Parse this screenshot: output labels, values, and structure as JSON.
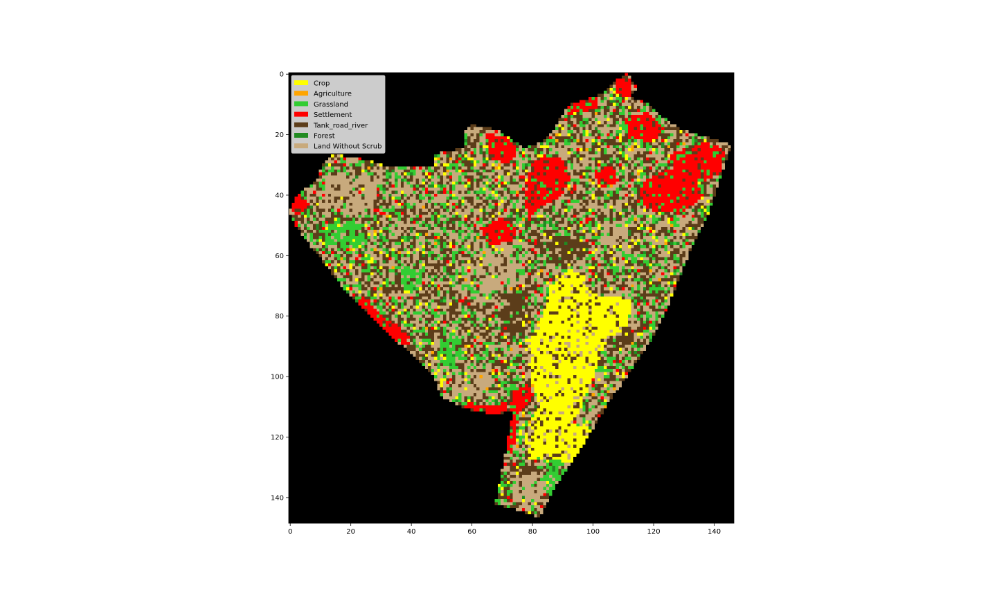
{
  "chart_data": {
    "type": "heatmap",
    "title": "",
    "xlabel": "",
    "ylabel": "",
    "grid_shape": [
      149,
      147
    ],
    "xlim": [
      0,
      147
    ],
    "ylim": [
      149,
      0
    ],
    "x_ticks": [
      0,
      20,
      40,
      60,
      80,
      100,
      120,
      140
    ],
    "y_ticks": [
      0,
      20,
      40,
      60,
      80,
      100,
      120,
      140
    ],
    "background_color": "#000000",
    "legend_position": "upper-left",
    "legend": [
      {
        "name": "Crop",
        "color": "#ffff00"
      },
      {
        "name": "Agriculture",
        "color": "#ffa500"
      },
      {
        "name": "Grassland",
        "color": "#32cd32"
      },
      {
        "name": "Settlement",
        "color": "#ff0000"
      },
      {
        "name": "Tank_road_river",
        "color": "#5c3d1a"
      },
      {
        "name": "Forest",
        "color": "#228b22"
      },
      {
        "name": "Land Without Scrub",
        "color": "#c8aa7d"
      }
    ],
    "region_boundary": [
      [
        112,
        0
      ],
      [
        115,
        5
      ],
      [
        113,
        8
      ],
      [
        118,
        10
      ],
      [
        124,
        15
      ],
      [
        130,
        19
      ],
      [
        141,
        22
      ],
      [
        146,
        24
      ],
      [
        142,
        36
      ],
      [
        138,
        48
      ],
      [
        133,
        58
      ],
      [
        129,
        68
      ],
      [
        125,
        78
      ],
      [
        120,
        88
      ],
      [
        112,
        100
      ],
      [
        105,
        110
      ],
      [
        98,
        122
      ],
      [
        88,
        137
      ],
      [
        83,
        147
      ],
      [
        74,
        144
      ],
      [
        68,
        143
      ],
      [
        72,
        123
      ],
      [
        74,
        112
      ],
      [
        68,
        113
      ],
      [
        58,
        111
      ],
      [
        50,
        107
      ],
      [
        48,
        100
      ],
      [
        37,
        90
      ],
      [
        27,
        80
      ],
      [
        17,
        70
      ],
      [
        11,
        62
      ],
      [
        7,
        57
      ],
      [
        2,
        50
      ],
      [
        0,
        46
      ],
      [
        3,
        40
      ],
      [
        9,
        36
      ],
      [
        11,
        30
      ],
      [
        15,
        27
      ],
      [
        27,
        29
      ],
      [
        33,
        31
      ],
      [
        48,
        31
      ],
      [
        48,
        27
      ],
      [
        52,
        26
      ],
      [
        58,
        25
      ],
      [
        58,
        19
      ],
      [
        60,
        17
      ],
      [
        69,
        19
      ],
      [
        78,
        25
      ],
      [
        83,
        23
      ],
      [
        88,
        18
      ],
      [
        92,
        11
      ],
      [
        103,
        7
      ],
      [
        109,
        2
      ]
    ],
    "zones": [
      {
        "class": "Crop",
        "polygon": [
          [
            80,
            88
          ],
          [
            84,
            80
          ],
          [
            86,
            72
          ],
          [
            92,
            65
          ],
          [
            97,
            66
          ],
          [
            100,
            73
          ],
          [
            113,
            75
          ],
          [
            112,
            84
          ],
          [
            104,
            90
          ],
          [
            100,
            102
          ],
          [
            96,
            112
          ],
          [
            93,
            116
          ],
          [
            101,
            118
          ],
          [
            101,
            126
          ],
          [
            96,
            130
          ],
          [
            85,
            127
          ],
          [
            79,
            128
          ],
          [
            78,
            118
          ],
          [
            83,
            110
          ],
          [
            80,
            102
          ]
        ]
      },
      {
        "class": "Settlement",
        "polygon": [
          [
            80,
            30
          ],
          [
            85,
            27
          ],
          [
            91,
            29
          ],
          [
            93,
            35
          ],
          [
            90,
            41
          ],
          [
            84,
            44
          ],
          [
            79,
            48
          ],
          [
            78,
            42
          ]
        ]
      },
      {
        "class": "Settlement",
        "polygon": [
          [
            117,
            36
          ],
          [
            125,
            32
          ],
          [
            134,
            33
          ],
          [
            137,
            41
          ],
          [
            130,
            46
          ],
          [
            121,
            46
          ],
          [
            115,
            43
          ]
        ]
      },
      {
        "class": "Settlement",
        "polygon": [
          [
            126,
            27
          ],
          [
            137,
            23
          ],
          [
            144,
            25
          ],
          [
            143,
            33
          ],
          [
            137,
            36
          ],
          [
            128,
            34
          ]
        ]
      },
      {
        "class": "Settlement",
        "polygon": [
          [
            111,
            15
          ],
          [
            119,
            13
          ],
          [
            124,
            19
          ],
          [
            119,
            23
          ],
          [
            112,
            21
          ]
        ]
      },
      {
        "class": "Settlement",
        "polygon": [
          [
            108,
            1
          ],
          [
            113,
            2
          ],
          [
            113,
            8
          ],
          [
            108,
            7
          ]
        ]
      },
      {
        "class": "Settlement",
        "polygon": [
          [
            92,
            8
          ],
          [
            102,
            8
          ],
          [
            102,
            12
          ],
          [
            95,
            13
          ],
          [
            92,
            15
          ]
        ]
      },
      {
        "class": "Settlement",
        "polygon": [
          [
            65,
            20
          ],
          [
            72,
            21
          ],
          [
            76,
            25
          ],
          [
            73,
            30
          ],
          [
            67,
            29
          ]
        ]
      },
      {
        "class": "Settlement",
        "polygon": [
          [
            63,
            51
          ],
          [
            70,
            48
          ],
          [
            76,
            51
          ],
          [
            74,
            56
          ],
          [
            66,
            57
          ]
        ]
      },
      {
        "class": "Settlement",
        "polygon": [
          [
            24,
            74
          ],
          [
            31,
            80
          ],
          [
            38,
            85
          ],
          [
            40,
            90
          ],
          [
            34,
            89
          ],
          [
            27,
            82
          ],
          [
            22,
            77
          ]
        ]
      },
      {
        "class": "Settlement",
        "polygon": [
          [
            58,
            109
          ],
          [
            65,
            110
          ],
          [
            72,
            109
          ],
          [
            72,
            113
          ],
          [
            64,
            113
          ],
          [
            58,
            112
          ]
        ]
      },
      {
        "class": "Settlement",
        "polygon": [
          [
            74,
            104
          ],
          [
            79,
            103
          ],
          [
            81,
            108
          ],
          [
            76,
            112
          ],
          [
            75,
            120
          ],
          [
            73,
            128
          ],
          [
            72,
            122
          ]
        ]
      },
      {
        "class": "Settlement",
        "polygon": [
          [
            1,
            41
          ],
          [
            5,
            40
          ],
          [
            7,
            44
          ],
          [
            3,
            47
          ],
          [
            0,
            45
          ]
        ]
      },
      {
        "class": "Settlement",
        "polygon": [
          [
            100,
            32
          ],
          [
            107,
            31
          ],
          [
            109,
            36
          ],
          [
            103,
            38
          ]
        ]
      },
      {
        "class": "Land Without Scrub",
        "polygon": [
          [
            12,
            34
          ],
          [
            22,
            32
          ],
          [
            30,
            35
          ],
          [
            28,
            44
          ],
          [
            19,
            47
          ],
          [
            12,
            43
          ]
        ]
      },
      {
        "class": "Land Without Scrub",
        "polygon": [
          [
            64,
            58
          ],
          [
            72,
            56
          ],
          [
            76,
            64
          ],
          [
            72,
            72
          ],
          [
            66,
            74
          ],
          [
            62,
            66
          ]
        ]
      },
      {
        "class": "Land Without Scrub",
        "polygon": [
          [
            75,
            134
          ],
          [
            82,
            132
          ],
          [
            86,
            138
          ],
          [
            80,
            143
          ],
          [
            74,
            142
          ]
        ]
      },
      {
        "class": "Land Without Scrub",
        "polygon": [
          [
            55,
            98
          ],
          [
            64,
            96
          ],
          [
            68,
            103
          ],
          [
            63,
            108
          ],
          [
            55,
            106
          ]
        ]
      },
      {
        "class": "Land Without Scrub",
        "polygon": [
          [
            104,
            50
          ],
          [
            110,
            48
          ],
          [
            113,
            55
          ],
          [
            108,
            58
          ],
          [
            103,
            56
          ]
        ]
      },
      {
        "class": "Grassland",
        "polygon": [
          [
            13,
            50
          ],
          [
            22,
            48
          ],
          [
            26,
            56
          ],
          [
            18,
            59
          ],
          [
            12,
            56
          ]
        ]
      },
      {
        "class": "Grassland",
        "polygon": [
          [
            50,
            88
          ],
          [
            56,
            86
          ],
          [
            58,
            94
          ],
          [
            54,
            98
          ],
          [
            49,
            96
          ]
        ]
      },
      {
        "class": "Grassland",
        "polygon": [
          [
            86,
            128
          ],
          [
            92,
            127
          ],
          [
            90,
            136
          ],
          [
            86,
            141
          ],
          [
            83,
            137
          ]
        ]
      },
      {
        "class": "Grassland",
        "polygon": [
          [
            36,
            65
          ],
          [
            42,
            63
          ],
          [
            44,
            70
          ],
          [
            38,
            73
          ]
        ]
      },
      {
        "class": "Tank_road_river",
        "polygon": [
          [
            86,
            55
          ],
          [
            95,
            53
          ],
          [
            99,
            60
          ],
          [
            92,
            64
          ],
          [
            86,
            62
          ]
        ]
      },
      {
        "class": "Tank_road_river",
        "polygon": [
          [
            104,
            82
          ],
          [
            112,
            80
          ],
          [
            114,
            88
          ],
          [
            107,
            92
          ],
          [
            103,
            89
          ]
        ]
      },
      {
        "class": "Tank_road_river",
        "polygon": [
          [
            70,
            74
          ],
          [
            79,
            72
          ],
          [
            80,
            84
          ],
          [
            74,
            88
          ],
          [
            69,
            83
          ]
        ]
      },
      {
        "class": "Tank_road_river",
        "polygon": [
          [
            76,
            132
          ],
          [
            84,
            131
          ],
          [
            82,
            136
          ],
          [
            76,
            138
          ]
        ]
      }
    ],
    "background_mix": [
      {
        "class": "Land Without Scrub",
        "weight": 0.38
      },
      {
        "class": "Tank_road_river",
        "weight": 0.32
      },
      {
        "class": "Grassland",
        "weight": 0.18
      },
      {
        "class": "Crop",
        "weight": 0.05
      },
      {
        "class": "Settlement",
        "weight": 0.03
      },
      {
        "class": "Forest",
        "weight": 0.03
      },
      {
        "class": "Agriculture",
        "weight": 0.01
      }
    ]
  }
}
